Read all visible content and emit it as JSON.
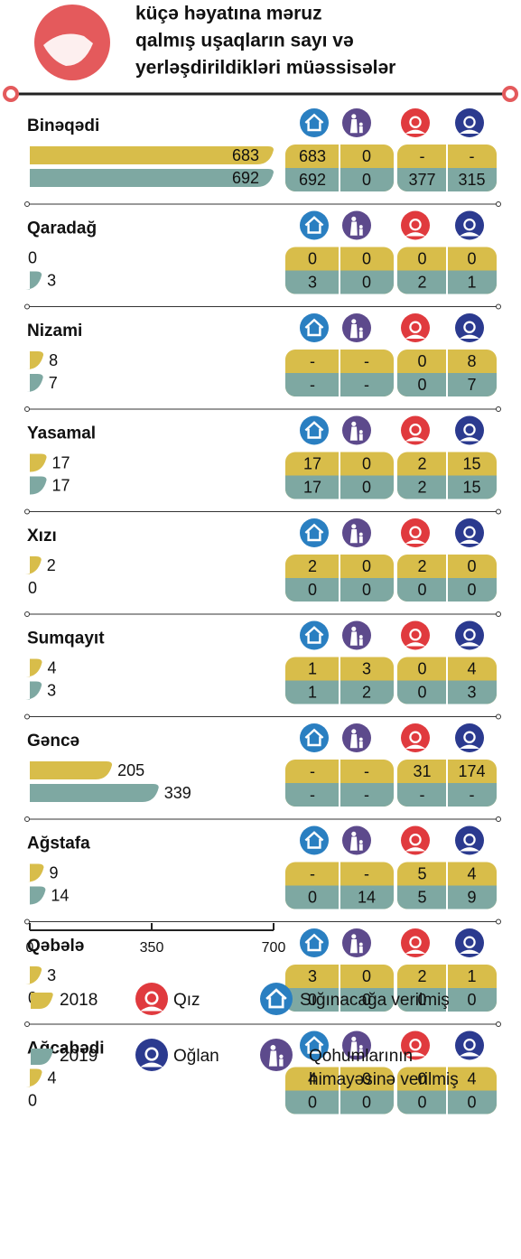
{
  "title": [
    "küçə həyatına məruz",
    "qalmış uşaqların sayı və",
    "yerləşdirildikləri müəssisələr"
  ],
  "colors": {
    "2018": "#d8bd4a",
    "2019": "#7ea8a2"
  },
  "xlim": [
    0,
    700
  ],
  "xticks": [
    0,
    350,
    700
  ],
  "regions": [
    {
      "name": "Binəqədi",
      "values": [
        683,
        692
      ],
      "table": [
        [
          683,
          0,
          "-",
          "-"
        ],
        [
          692,
          0,
          377,
          315
        ]
      ]
    },
    {
      "name": "Qaradağ",
      "values": [
        0,
        3
      ],
      "table": [
        [
          0,
          0,
          0,
          0
        ],
        [
          3,
          0,
          2,
          1
        ]
      ]
    },
    {
      "name": "Nizami",
      "values": [
        8,
        7
      ],
      "table": [
        [
          "-",
          "-",
          0,
          8
        ],
        [
          "-",
          "-",
          0,
          7
        ]
      ]
    },
    {
      "name": "Yasamal",
      "values": [
        17,
        17
      ],
      "table": [
        [
          17,
          0,
          2,
          15
        ],
        [
          17,
          0,
          2,
          15
        ]
      ]
    },
    {
      "name": "Xızı",
      "values": [
        2,
        0
      ],
      "table": [
        [
          2,
          0,
          2,
          0
        ],
        [
          0,
          0,
          0,
          0
        ]
      ]
    },
    {
      "name": "Sumqayıt",
      "values": [
        4,
        3
      ],
      "table": [
        [
          1,
          3,
          0,
          4
        ],
        [
          1,
          2,
          0,
          3
        ]
      ]
    },
    {
      "name": "Gəncə",
      "values": [
        205,
        339
      ],
      "table": [
        [
          "-",
          "-",
          31,
          174
        ],
        [
          "-",
          "-",
          "-",
          "-"
        ]
      ]
    },
    {
      "name": "Ağstafa",
      "values": [
        9,
        14
      ],
      "table": [
        [
          "-",
          "-",
          5,
          4
        ],
        [
          0,
          14,
          5,
          9
        ]
      ]
    },
    {
      "name": "Qəbələ",
      "values": [
        3,
        0
      ],
      "table": [
        [
          3,
          0,
          2,
          1
        ],
        [
          0,
          0,
          0,
          0
        ]
      ]
    },
    {
      "name": "Ağcabədi",
      "values": [
        4,
        0
      ],
      "table": [
        [
          4,
          0,
          0,
          4
        ],
        [
          0,
          0,
          0,
          0
        ]
      ]
    }
  ],
  "legend": {
    "years": [
      "2018",
      "2019"
    ],
    "girl": "Qız",
    "boy": "Oğlan",
    "shelter": "Sığınacağa verilmiş",
    "relatives": [
      "Qohumlarının",
      "himayəsinə verilmiş"
    ]
  }
}
